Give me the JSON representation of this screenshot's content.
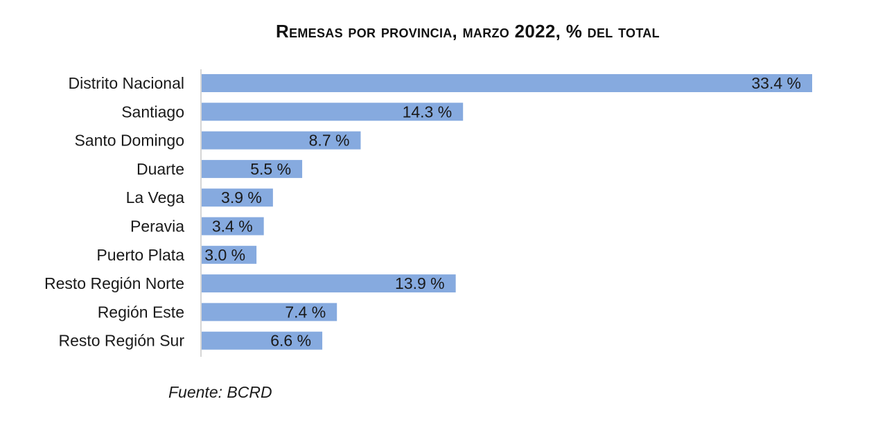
{
  "chart_data": {
    "type": "bar",
    "orientation": "horizontal",
    "title": "Remesas por provincia, marzo 2022, % del total",
    "categories": [
      "Distrito Nacional",
      "Santiago",
      "Santo Domingo",
      "Duarte",
      "La Vega",
      "Peravia",
      "Puerto Plata",
      "Resto Región Norte",
      "Región Este",
      "Resto Región Sur"
    ],
    "values": [
      33.4,
      14.3,
      8.7,
      5.5,
      3.9,
      3.4,
      3.0,
      13.9,
      7.4,
      6.6
    ],
    "data_labels": [
      "33.4 %",
      "14.3 %",
      "8.7 %",
      "5.5 %",
      "3.9 %",
      "3.4 %",
      "3.0 %",
      "13.9 %",
      "7.4 %",
      "6.6 %"
    ],
    "xlabel": "",
    "ylabel": "",
    "xlim": [
      0,
      34
    ],
    "grid": false,
    "bar_color": "#86aadf",
    "legend": "none"
  },
  "source": "Fuente: BCRD"
}
